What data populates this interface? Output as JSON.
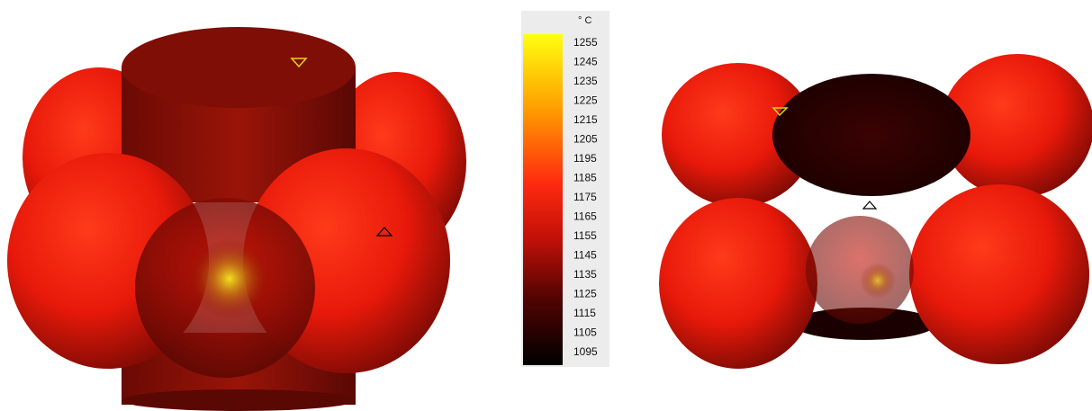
{
  "colorbar": {
    "unit": "° C",
    "ticks": [
      1255,
      1245,
      1235,
      1225,
      1215,
      1205,
      1195,
      1185,
      1175,
      1165,
      1155,
      1145,
      1135,
      1125,
      1115,
      1105,
      1095
    ]
  }
}
